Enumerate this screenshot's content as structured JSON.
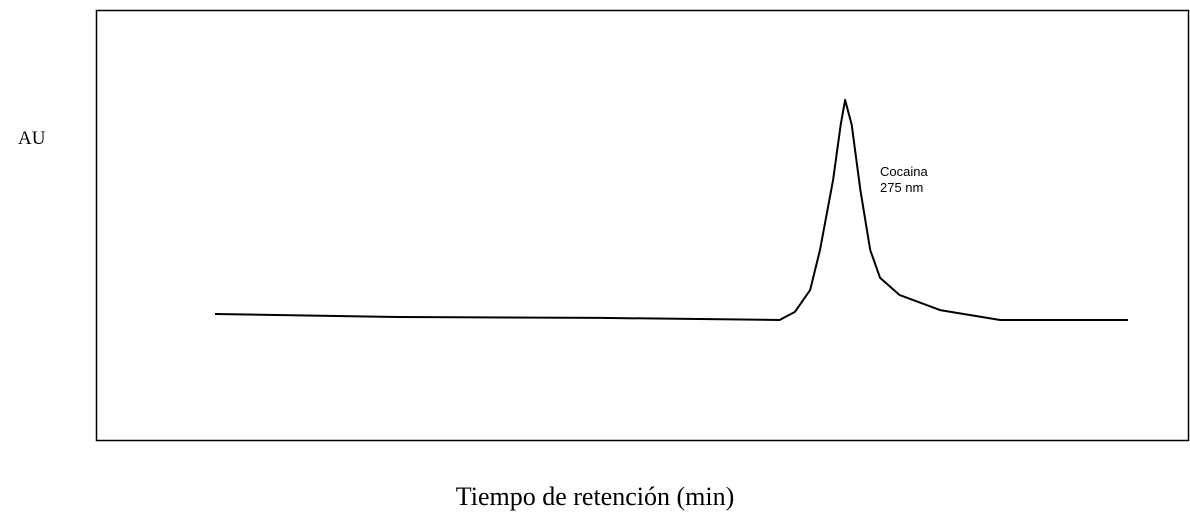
{
  "chart_data": {
    "type": "line",
    "y_label": "AU",
    "x_label": "Tiempo de retención (min)",
    "annotation": [
      "Cocaina",
      "275 nm"
    ],
    "x": [
      10.9,
      27.8,
      46.2,
      62.6,
      64.0,
      65.4,
      66.3,
      67.5,
      68.2,
      68.6,
      69.2,
      70.0,
      70.9,
      71.8,
      73.6,
      77.3,
      82.8,
      94.5
    ],
    "values": [
      29.3,
      28.6,
      28.4,
      27.9,
      29.8,
      34.9,
      44.2,
      60.5,
      73.3,
      79.1,
      73.3,
      58.1,
      44.2,
      37.7,
      33.7,
      30.2,
      27.9,
      27.9
    ],
    "color": "#000000",
    "xlim": [
      0,
      100
    ],
    "ylim": [
      0,
      100
    ]
  }
}
